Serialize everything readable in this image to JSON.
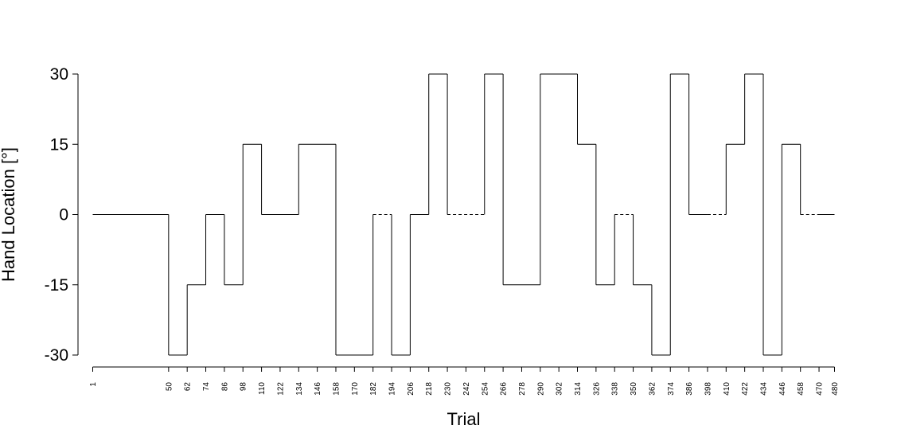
{
  "chart_data": {
    "type": "line",
    "title": "",
    "xlabel": "Trial",
    "ylabel": "Hand Location [°]",
    "xlim": [
      1,
      480
    ],
    "ylim": [
      -30,
      30
    ],
    "y_ticks": [
      "-30",
      "-15",
      "0",
      "15",
      "30"
    ],
    "x_ticks": [
      "1",
      "50",
      "62",
      "74",
      "86",
      "98",
      "110",
      "122",
      "134",
      "146",
      "158",
      "170",
      "182",
      "194",
      "206",
      "218",
      "230",
      "242",
      "254",
      "266",
      "278",
      "290",
      "302",
      "314",
      "326",
      "338",
      "350",
      "362",
      "374",
      "386",
      "398",
      "410",
      "422",
      "434",
      "446",
      "458",
      "470",
      "480"
    ],
    "grid": false,
    "legend": "none",
    "series": [
      {
        "style": "step",
        "segments": [
          {
            "x0": 1,
            "x1": 50,
            "y": 0,
            "dashed": false
          },
          {
            "x0": 50,
            "x1": 62,
            "y": -30,
            "dashed": false
          },
          {
            "x0": 62,
            "x1": 74,
            "y": -15,
            "dashed": false
          },
          {
            "x0": 74,
            "x1": 86,
            "y": 0,
            "dashed": false
          },
          {
            "x0": 86,
            "x1": 98,
            "y": -15,
            "dashed": false
          },
          {
            "x0": 98,
            "x1": 110,
            "y": 15,
            "dashed": false
          },
          {
            "x0": 110,
            "x1": 134,
            "y": 0,
            "dashed": false
          },
          {
            "x0": 134,
            "x1": 158,
            "y": 15,
            "dashed": false
          },
          {
            "x0": 158,
            "x1": 182,
            "y": -30,
            "dashed": false
          },
          {
            "x0": 182,
            "x1": 194,
            "y": 0,
            "dashed": true
          },
          {
            "x0": 194,
            "x1": 206,
            "y": -30,
            "dashed": false
          },
          {
            "x0": 206,
            "x1": 218,
            "y": 0,
            "dashed": false
          },
          {
            "x0": 218,
            "x1": 230,
            "y": 30,
            "dashed": false
          },
          {
            "x0": 230,
            "x1": 254,
            "y": 0,
            "dashed": true
          },
          {
            "x0": 254,
            "x1": 266,
            "y": 30,
            "dashed": false
          },
          {
            "x0": 266,
            "x1": 290,
            "y": -15,
            "dashed": false
          },
          {
            "x0": 290,
            "x1": 314,
            "y": 30,
            "dashed": false
          },
          {
            "x0": 314,
            "x1": 326,
            "y": 15,
            "dashed": false
          },
          {
            "x0": 326,
            "x1": 338,
            "y": -15,
            "dashed": false
          },
          {
            "x0": 338,
            "x1": 350,
            "y": 0,
            "dashed": true
          },
          {
            "x0": 350,
            "x1": 362,
            "y": -15,
            "dashed": false
          },
          {
            "x0": 362,
            "x1": 374,
            "y": -30,
            "dashed": false
          },
          {
            "x0": 374,
            "x1": 386,
            "y": 30,
            "dashed": false
          },
          {
            "x0": 386,
            "x1": 398,
            "y": 0,
            "dashed": false
          },
          {
            "x0": 398,
            "x1": 410,
            "y": 0,
            "dashed": true
          },
          {
            "x0": 410,
            "x1": 422,
            "y": 15,
            "dashed": false
          },
          {
            "x0": 422,
            "x1": 434,
            "y": 30,
            "dashed": false
          },
          {
            "x0": 434,
            "x1": 446,
            "y": -30,
            "dashed": false
          },
          {
            "x0": 446,
            "x1": 458,
            "y": 15,
            "dashed": false
          },
          {
            "x0": 458,
            "x1": 470,
            "y": 0,
            "dashed": true
          },
          {
            "x0": 470,
            "x1": 480,
            "y": 0,
            "dashed": false
          }
        ]
      }
    ]
  }
}
